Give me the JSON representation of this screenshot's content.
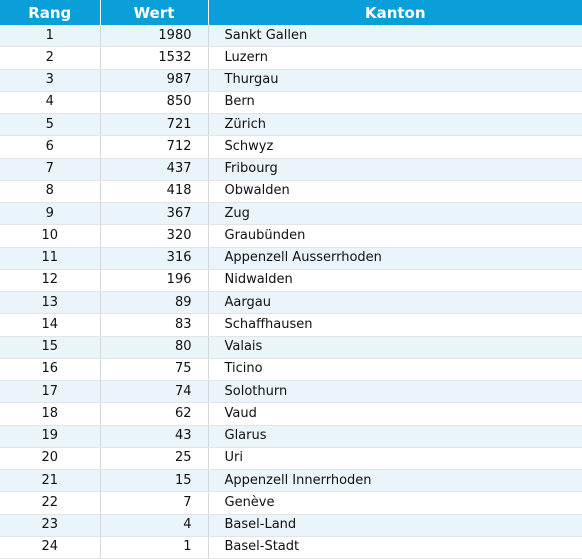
{
  "table": {
    "headers": {
      "rang": "Rang",
      "wert": "Wert",
      "kanton": "Kanton"
    },
    "rows": [
      {
        "rang": "1",
        "wert": "1980",
        "kanton": "Sankt Gallen"
      },
      {
        "rang": "2",
        "wert": "1532",
        "kanton": "Luzern"
      },
      {
        "rang": "3",
        "wert": "987",
        "kanton": "Thurgau"
      },
      {
        "rang": "4",
        "wert": "850",
        "kanton": "Bern"
      },
      {
        "rang": "5",
        "wert": "721",
        "kanton": "Zürich"
      },
      {
        "rang": "6",
        "wert": "712",
        "kanton": "Schwyz"
      },
      {
        "rang": "7",
        "wert": "437",
        "kanton": "Fribourg"
      },
      {
        "rang": "8",
        "wert": "418",
        "kanton": "Obwalden"
      },
      {
        "rang": "9",
        "wert": "367",
        "kanton": "Zug"
      },
      {
        "rang": "10",
        "wert": "320",
        "kanton": "Graubünden"
      },
      {
        "rang": "11",
        "wert": "316",
        "kanton": "Appenzell Ausserrhoden"
      },
      {
        "rang": "12",
        "wert": "196",
        "kanton": "Nidwalden"
      },
      {
        "rang": "13",
        "wert": "89",
        "kanton": "Aargau"
      },
      {
        "rang": "14",
        "wert": "83",
        "kanton": "Schaffhausen"
      },
      {
        "rang": "15",
        "wert": "80",
        "kanton": "Valais"
      },
      {
        "rang": "16",
        "wert": "75",
        "kanton": "Ticino"
      },
      {
        "rang": "17",
        "wert": "74",
        "kanton": "Solothurn"
      },
      {
        "rang": "18",
        "wert": "62",
        "kanton": "Vaud"
      },
      {
        "rang": "19",
        "wert": "43",
        "kanton": "Glarus"
      },
      {
        "rang": "20",
        "wert": "25",
        "kanton": "Uri"
      },
      {
        "rang": "21",
        "wert": "15",
        "kanton": "Appenzell Innerrhoden"
      },
      {
        "rang": "22",
        "wert": "7",
        "kanton": "Genève"
      },
      {
        "rang": "23",
        "wert": "4",
        "kanton": "Basel-Land"
      },
      {
        "rang": "24",
        "wert": "1",
        "kanton": "Basel-Stadt"
      }
    ]
  },
  "colors": {
    "header_bg": "#0a9fd8",
    "stripe_bg": "#eaf4fb"
  }
}
